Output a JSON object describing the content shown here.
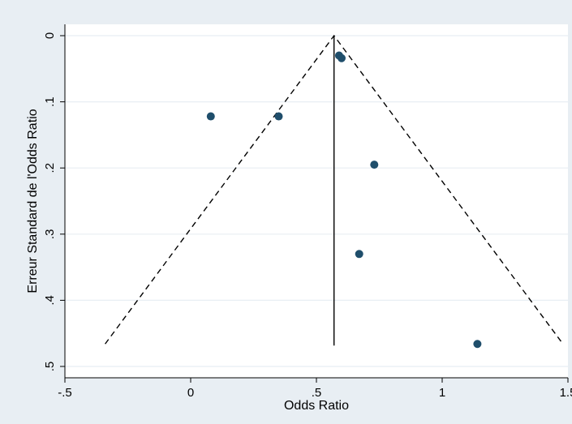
{
  "chart_data": {
    "type": "scatter",
    "title": "",
    "xlabel": "Odds Ratio",
    "ylabel": "Erreur Standard de l'Odds Ratio",
    "xlim": [
      -0.5,
      1.5
    ],
    "ylim": [
      0,
      0.5
    ],
    "y_reversed": true,
    "x_ticks": [
      -0.5,
      0,
      0.5,
      1,
      1.5
    ],
    "x_tick_labels": [
      "-.5",
      "0",
      ".5",
      "1",
      "1.5"
    ],
    "y_ticks": [
      0,
      0.1,
      0.2,
      0.3,
      0.4,
      0.5
    ],
    "y_tick_labels": [
      "0",
      ".1",
      ".2",
      ".3",
      ".4",
      ".5"
    ],
    "grid": "horizontal",
    "points": [
      {
        "x": 0.59,
        "y": 0.03
      },
      {
        "x": 0.6,
        "y": 0.034
      },
      {
        "x": 0.08,
        "y": 0.122
      },
      {
        "x": 0.35,
        "y": 0.122
      },
      {
        "x": 0.73,
        "y": 0.195
      },
      {
        "x": 0.67,
        "y": 0.33
      },
      {
        "x": 1.14,
        "y": 0.466
      }
    ],
    "pooled_estimate": 0.57,
    "funnel_limits": {
      "left_bottom": [
        -0.34,
        0.466
      ],
      "apex": [
        0.57,
        0
      ],
      "right_bottom": [
        1.48,
        0.466
      ]
    },
    "colors": {
      "point": "#1f4e6b",
      "background": "#e8eef3",
      "plot_area": "#ffffff",
      "grid": "#e8eef3"
    }
  }
}
